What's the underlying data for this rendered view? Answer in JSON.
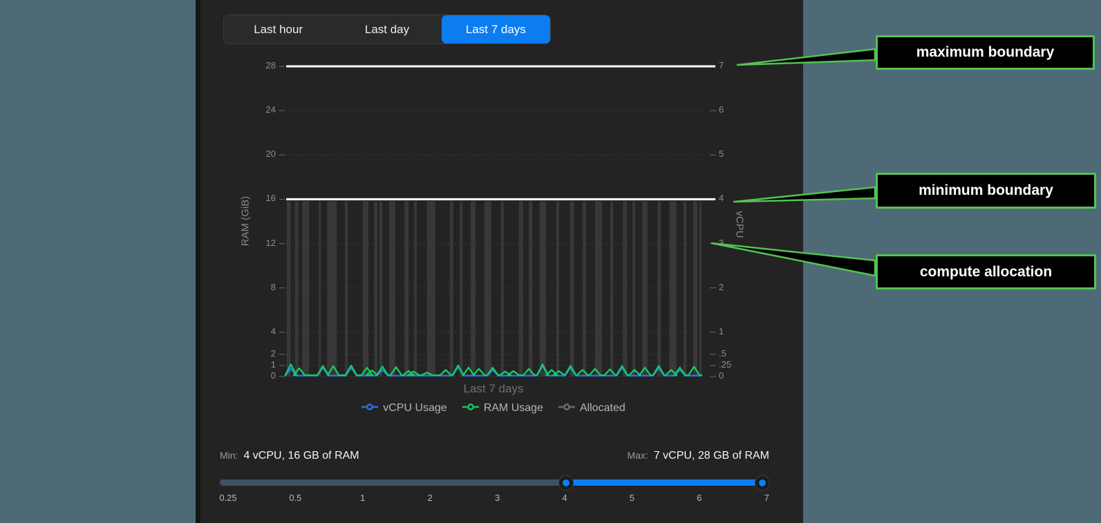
{
  "colors": {
    "accent_blue": "#0c7cf1",
    "slider_blue": "#0c7ff2",
    "slider_inactive": "#405166",
    "callout_green": "#54c353",
    "boundary_white": "#ffffff",
    "panel_bg": "#232323",
    "page_bg": "#4d6a76"
  },
  "panel": {
    "tabs": [
      {
        "label": "Last hour",
        "active": false
      },
      {
        "label": "Last day",
        "active": false
      },
      {
        "label": "Last 7 days",
        "active": true
      }
    ]
  },
  "chart_data": {
    "type": "line",
    "title": "",
    "xlabel": "Last 7 days",
    "y_left": {
      "label": "RAM (GiB)",
      "ticks": [
        28,
        24,
        20,
        16,
        12,
        8,
        4,
        2,
        1,
        0
      ],
      "range": [
        0,
        28
      ]
    },
    "y_right": {
      "label": "vCPU",
      "ticks": [
        {
          "v": 7,
          "label": "7"
        },
        {
          "v": 6,
          "label": "6"
        },
        {
          "v": 5,
          "label": "5"
        },
        {
          "v": 4,
          "label": "4"
        },
        {
          "v": 3,
          "label": "3"
        },
        {
          "v": 2,
          "label": "2"
        },
        {
          "v": 1,
          "label": "1"
        },
        {
          "v": 0.5,
          "label": ".5"
        },
        {
          "v": 0.25,
          "label": ".25"
        },
        {
          "v": 0,
          "label": "0"
        }
      ],
      "range": [
        0,
        7
      ]
    },
    "boundaries": {
      "maximum": {
        "vcpu": 7,
        "ram_gib": 28
      },
      "minimum": {
        "vcpu": 4,
        "ram_gib": 16
      }
    },
    "grid": true,
    "legend_position": "bottom",
    "series": [
      {
        "name": "vCPU Usage",
        "color": "#2e6fe8",
        "unit": "vCPU",
        "baseline": 0.02,
        "peaks": [
          [
            0.013,
            0.18
          ],
          [
            0.09,
            0.2
          ],
          [
            0.158,
            0.2
          ],
          [
            0.233,
            0.15
          ],
          [
            0.415,
            0.22
          ],
          [
            0.498,
            0.15
          ],
          [
            0.618,
            0.25
          ],
          [
            0.685,
            0.2
          ],
          [
            0.809,
            0.2
          ],
          [
            0.897,
            0.2
          ],
          [
            0.948,
            0.15
          ]
        ]
      },
      {
        "name": "RAM Usage",
        "color": "#16c964",
        "unit": "GiB",
        "baseline": 0.12,
        "peaks": [
          [
            0.013,
            1.1
          ],
          [
            0.033,
            0.75
          ],
          [
            0.09,
            0.95
          ],
          [
            0.115,
            0.95
          ],
          [
            0.158,
            1.0
          ],
          [
            0.196,
            0.8
          ],
          [
            0.208,
            0.55
          ],
          [
            0.233,
            0.9
          ],
          [
            0.266,
            0.85
          ],
          [
            0.296,
            0.5
          ],
          [
            0.308,
            0.45
          ],
          [
            0.34,
            0.35
          ],
          [
            0.385,
            0.6
          ],
          [
            0.415,
            1.0
          ],
          [
            0.44,
            0.8
          ],
          [
            0.465,
            0.7
          ],
          [
            0.498,
            0.8
          ],
          [
            0.528,
            0.45
          ],
          [
            0.548,
            0.5
          ],
          [
            0.585,
            0.7
          ],
          [
            0.618,
            1.1
          ],
          [
            0.64,
            0.6
          ],
          [
            0.657,
            0.5
          ],
          [
            0.685,
            0.95
          ],
          [
            0.714,
            0.6
          ],
          [
            0.744,
            0.7
          ],
          [
            0.78,
            0.65
          ],
          [
            0.809,
            0.95
          ],
          [
            0.839,
            0.6
          ],
          [
            0.864,
            0.8
          ],
          [
            0.897,
            0.95
          ],
          [
            0.927,
            0.6
          ],
          [
            0.948,
            0.8
          ],
          [
            0.982,
            0.9
          ]
        ]
      },
      {
        "name": "Allocated",
        "color": "#6f6f6f",
        "unit": "vCPU",
        "constant_vcpu": 4
      }
    ],
    "allocated_fill": "#383838",
    "allocated_stripes": [
      [
        0.003,
        6
      ],
      [
        0.023,
        5
      ],
      [
        0.04,
        10
      ],
      [
        0.08,
        3
      ],
      [
        0.1,
        14
      ],
      [
        0.143,
        4
      ],
      [
        0.186,
        8
      ],
      [
        0.213,
        5
      ],
      [
        0.226,
        4
      ],
      [
        0.249,
        9
      ],
      [
        0.286,
        6
      ],
      [
        0.309,
        4
      ],
      [
        0.34,
        12
      ],
      [
        0.395,
        5
      ],
      [
        0.419,
        4
      ],
      [
        0.445,
        7
      ],
      [
        0.478,
        10
      ],
      [
        0.518,
        4
      ],
      [
        0.561,
        6
      ],
      [
        0.585,
        5
      ],
      [
        0.611,
        9
      ],
      [
        0.651,
        4
      ],
      [
        0.684,
        6
      ],
      [
        0.714,
        5
      ],
      [
        0.744,
        10
      ],
      [
        0.781,
        4
      ],
      [
        0.811,
        6
      ],
      [
        0.834,
        4
      ],
      [
        0.857,
        8
      ],
      [
        0.894,
        5
      ],
      [
        0.923,
        10
      ],
      [
        0.957,
        4
      ],
      [
        0.98,
        6
      ],
      [
        0.995,
        3
      ]
    ]
  },
  "footer": {
    "min_label": "Min:",
    "min_value": "4 vCPU, 16 GB of RAM",
    "max_label": "Max:",
    "max_value": "7 vCPU, 28 GB of RAM",
    "slider": {
      "scale": [
        "0.25",
        "0.5",
        "1",
        "2",
        "3",
        "4",
        "5",
        "6",
        "7"
      ],
      "handles": [
        4,
        7
      ],
      "range": [
        0.25,
        7
      ]
    }
  },
  "annotations": [
    {
      "label": "maximum boundary"
    },
    {
      "label": "minimum boundary"
    },
    {
      "label": "compute allocation"
    }
  ]
}
